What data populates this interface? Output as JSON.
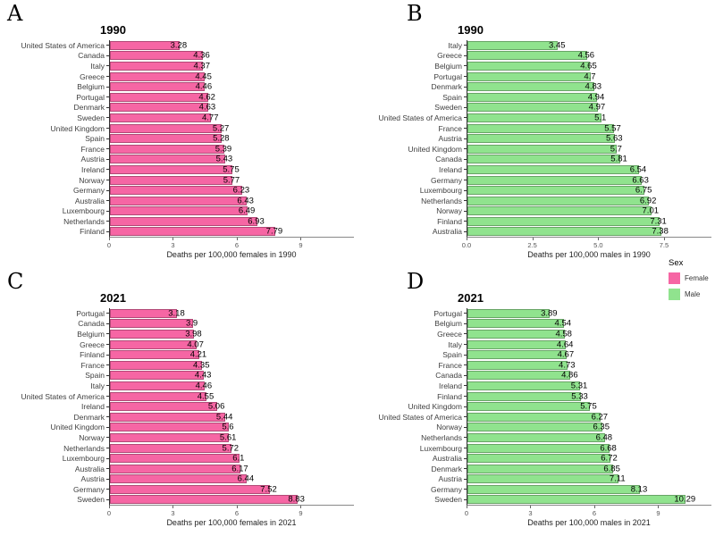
{
  "colors": {
    "female": "#F666A4",
    "male": "#90E38E",
    "bar_border": "rgba(0,0,0,0.28)",
    "axis_line": "#888888",
    "tick_text": "#555555",
    "label_text": "#404040"
  },
  "legend": {
    "title": "Sex",
    "position": "right",
    "items": [
      {
        "label": "Female",
        "color": "#F666A4"
      },
      {
        "label": "Male",
        "color": "#90E38E"
      }
    ]
  },
  "chart_data": [
    {
      "type": "bar",
      "orientation": "horizontal",
      "panel": "A",
      "title": "1990",
      "series": "Female",
      "color": "#F666A4",
      "xlabel": "Deaths per 100,000 females in 1990",
      "xlim": [
        0,
        11.5
      ],
      "grid": false,
      "xticks": [
        {
          "v": 0,
          "label": "0"
        },
        {
          "v": 3,
          "label": "3"
        },
        {
          "v": 6,
          "label": "6"
        },
        {
          "v": 9,
          "label": "9"
        }
      ],
      "categories": [
        "United States of America",
        "Canada",
        "Italy",
        "Greece",
        "Belgium",
        "Portugal",
        "Denmark",
        "Sweden",
        "United Kingdom",
        "Spain",
        "France",
        "Austria",
        "Ireland",
        "Norway",
        "Germany",
        "Australia",
        "Luxembourg",
        "Netherlands",
        "Finland"
      ],
      "values": [
        3.28,
        4.36,
        4.37,
        4.45,
        4.46,
        4.62,
        4.63,
        4.77,
        5.27,
        5.28,
        5.39,
        5.43,
        5.75,
        5.77,
        6.23,
        6.43,
        6.49,
        6.93,
        7.79
      ]
    },
    {
      "type": "bar",
      "orientation": "horizontal",
      "panel": "B",
      "title": "1990",
      "series": "Male",
      "color": "#90E38E",
      "xlabel": "Deaths per 100,000 males in 1990",
      "xlim": [
        0,
        9.3
      ],
      "grid": false,
      "xticks": [
        {
          "v": 0,
          "label": "0.0"
        },
        {
          "v": 2.5,
          "label": "2.5"
        },
        {
          "v": 5,
          "label": "5.0"
        },
        {
          "v": 7.5,
          "label": "7.5"
        }
      ],
      "categories": [
        "Italy",
        "Greece",
        "Belgium",
        "Portugal",
        "Denmark",
        "Spain",
        "Sweden",
        "United States of America",
        "France",
        "Austria",
        "United Kingdom",
        "Canada",
        "Ireland",
        "Germany",
        "Luxembourg",
        "Netherlands",
        "Norway",
        "Finland",
        "Australia"
      ],
      "values": [
        3.45,
        4.56,
        4.65,
        4.7,
        4.83,
        4.94,
        4.97,
        5.1,
        5.57,
        5.63,
        5.7,
        5.81,
        6.54,
        6.63,
        6.75,
        6.92,
        7.01,
        7.31,
        7.38
      ]
    },
    {
      "type": "bar",
      "orientation": "horizontal",
      "panel": "C",
      "title": "2021",
      "series": "Female",
      "color": "#F666A4",
      "xlabel": "Deaths per 100,000 females in 2021",
      "xlim": [
        0,
        11.5
      ],
      "grid": false,
      "xticks": [
        {
          "v": 0,
          "label": "0"
        },
        {
          "v": 3,
          "label": "3"
        },
        {
          "v": 6,
          "label": "6"
        },
        {
          "v": 9,
          "label": "9"
        }
      ],
      "categories": [
        "Portugal",
        "Canada",
        "Belgium",
        "Greece",
        "Finland",
        "France",
        "Spain",
        "Italy",
        "United States of America",
        "Ireland",
        "Denmark",
        "United Kingdom",
        "Norway",
        "Netherlands",
        "Luxembourg",
        "Australia",
        "Austria",
        "Germany",
        "Sweden"
      ],
      "values": [
        3.18,
        3.9,
        3.98,
        4.07,
        4.21,
        4.35,
        4.43,
        4.46,
        4.55,
        5.06,
        5.44,
        5.6,
        5.61,
        5.72,
        6.1,
        6.17,
        6.44,
        7.52,
        8.83
      ]
    },
    {
      "type": "bar",
      "orientation": "horizontal",
      "panel": "D",
      "title": "2021",
      "series": "Male",
      "color": "#90E38E",
      "xlabel": "Deaths per 100,000 males in 2021",
      "xlim": [
        0,
        11.5
      ],
      "grid": false,
      "xticks": [
        {
          "v": 0,
          "label": "0"
        },
        {
          "v": 3,
          "label": "3"
        },
        {
          "v": 6,
          "label": "6"
        },
        {
          "v": 9,
          "label": "9"
        }
      ],
      "categories": [
        "Portugal",
        "Belgium",
        "Greece",
        "Italy",
        "Spain",
        "France",
        "Canada",
        "Ireland",
        "Finland",
        "United Kingdom",
        "United States of America",
        "Norway",
        "Netherlands",
        "Luxembourg",
        "Australia",
        "Denmark",
        "Austria",
        "Germany",
        "Sweden"
      ],
      "values": [
        3.89,
        4.54,
        4.58,
        4.64,
        4.67,
        4.73,
        4.86,
        5.31,
        5.33,
        5.75,
        6.27,
        6.35,
        6.48,
        6.68,
        6.72,
        6.85,
        7.11,
        8.13,
        10.29
      ]
    }
  ]
}
